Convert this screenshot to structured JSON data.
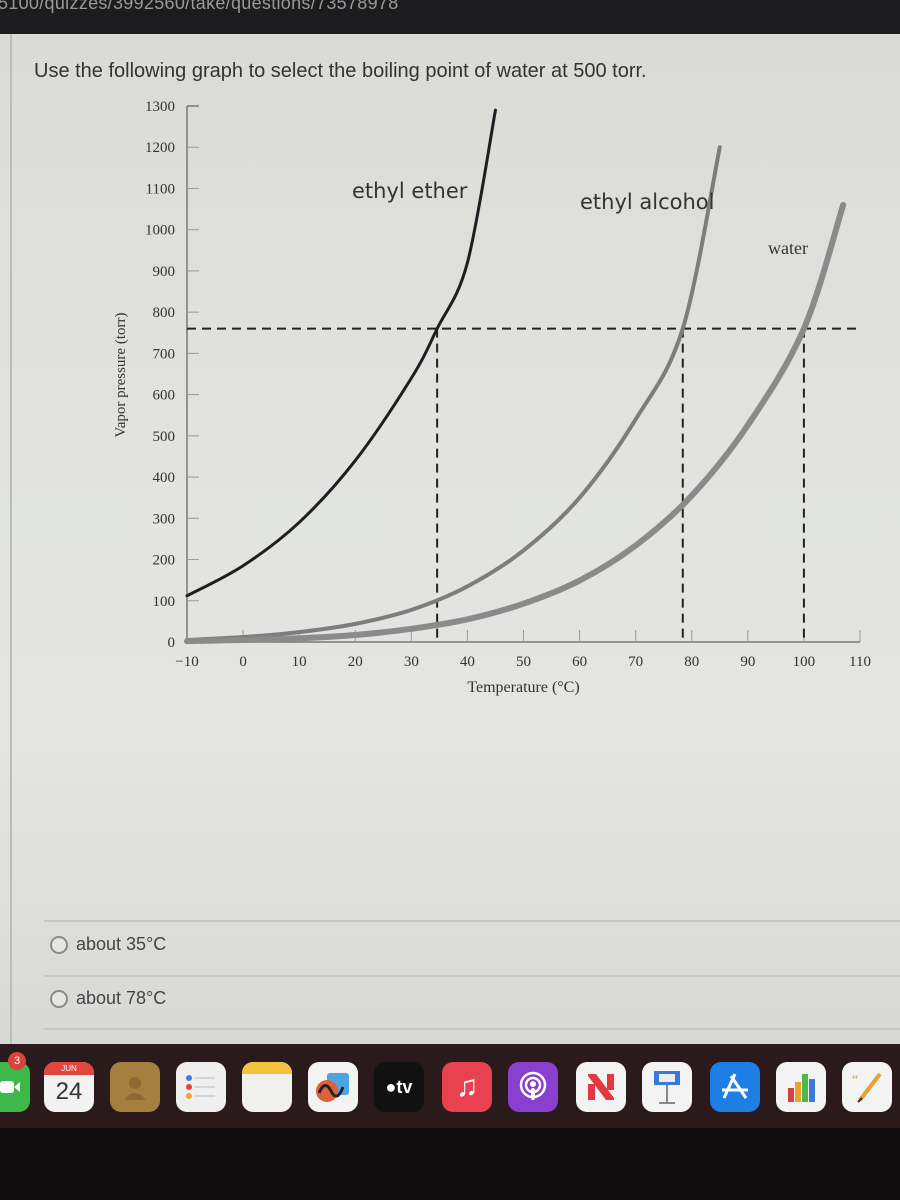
{
  "browser": {
    "url_fragment": "5100/quizzes/3992560/take/questions/73578978"
  },
  "question": {
    "text": "Use the following graph to select the boiling point of water at 500 torr."
  },
  "answers": [
    {
      "label": "about 35°C",
      "selected": false
    },
    {
      "label": "about 78°C",
      "selected": false
    }
  ],
  "chart_data": {
    "type": "line",
    "title": "",
    "xlabel": "Temperature (°C)",
    "ylabel": "Vapor pressure (torr)",
    "xlim": [
      -10,
      110
    ],
    "ylim": [
      0,
      1300
    ],
    "x_ticks": [
      "-10",
      "0",
      "10",
      "20",
      "30",
      "40",
      "50",
      "60",
      "70",
      "80",
      "90",
      "100",
      "110"
    ],
    "y_ticks": [
      "0",
      "100",
      "200",
      "300",
      "400",
      "500",
      "600",
      "700",
      "800",
      "900",
      "1000",
      "1100",
      "1200",
      "1300"
    ],
    "series": [
      {
        "name": "ethyl ether",
        "color": "#1e1e22",
        "x": [
          -10,
          0,
          10,
          20,
          30,
          34.6,
          40,
          45
        ],
        "y": [
          112,
          185,
          290,
          440,
          640,
          760,
          920,
          1290
        ]
      },
      {
        "name": "ethyl alcohol",
        "color": "#7d7d7d",
        "x": [
          -10,
          0,
          10,
          20,
          30,
          40,
          50,
          60,
          70,
          78.4,
          85
        ],
        "y": [
          5,
          12,
          24,
          44,
          78,
          135,
          222,
          350,
          540,
          760,
          1200
        ]
      },
      {
        "name": "water",
        "color": "#8a8a8a",
        "x": [
          -10,
          0,
          10,
          20,
          30,
          40,
          50,
          60,
          70,
          80,
          90,
          100,
          107
        ],
        "y": [
          2,
          5,
          9,
          17,
          32,
          55,
          93,
          149,
          234,
          355,
          526,
          760,
          1060
        ]
      }
    ],
    "reference_lines": {
      "horizontal_y": 760,
      "vertical_x": [
        34.6,
        78.4,
        100
      ],
      "style": "dashed"
    },
    "grid": false,
    "legend": "inline labels near curves"
  },
  "dock": {
    "items": [
      {
        "name": "FaceTime",
        "badge": "3"
      },
      {
        "name": "Calendar",
        "month": "JUN",
        "day": "24"
      },
      {
        "name": "Contacts"
      },
      {
        "name": "Reminders"
      },
      {
        "name": "Notes"
      },
      {
        "name": "Freeform"
      },
      {
        "name": "TV",
        "label": "tv"
      },
      {
        "name": "Music"
      },
      {
        "name": "Podcasts"
      },
      {
        "name": "News"
      },
      {
        "name": "Keynote"
      },
      {
        "name": "App Store"
      },
      {
        "name": "Numbers"
      },
      {
        "name": "Pages"
      }
    ]
  }
}
